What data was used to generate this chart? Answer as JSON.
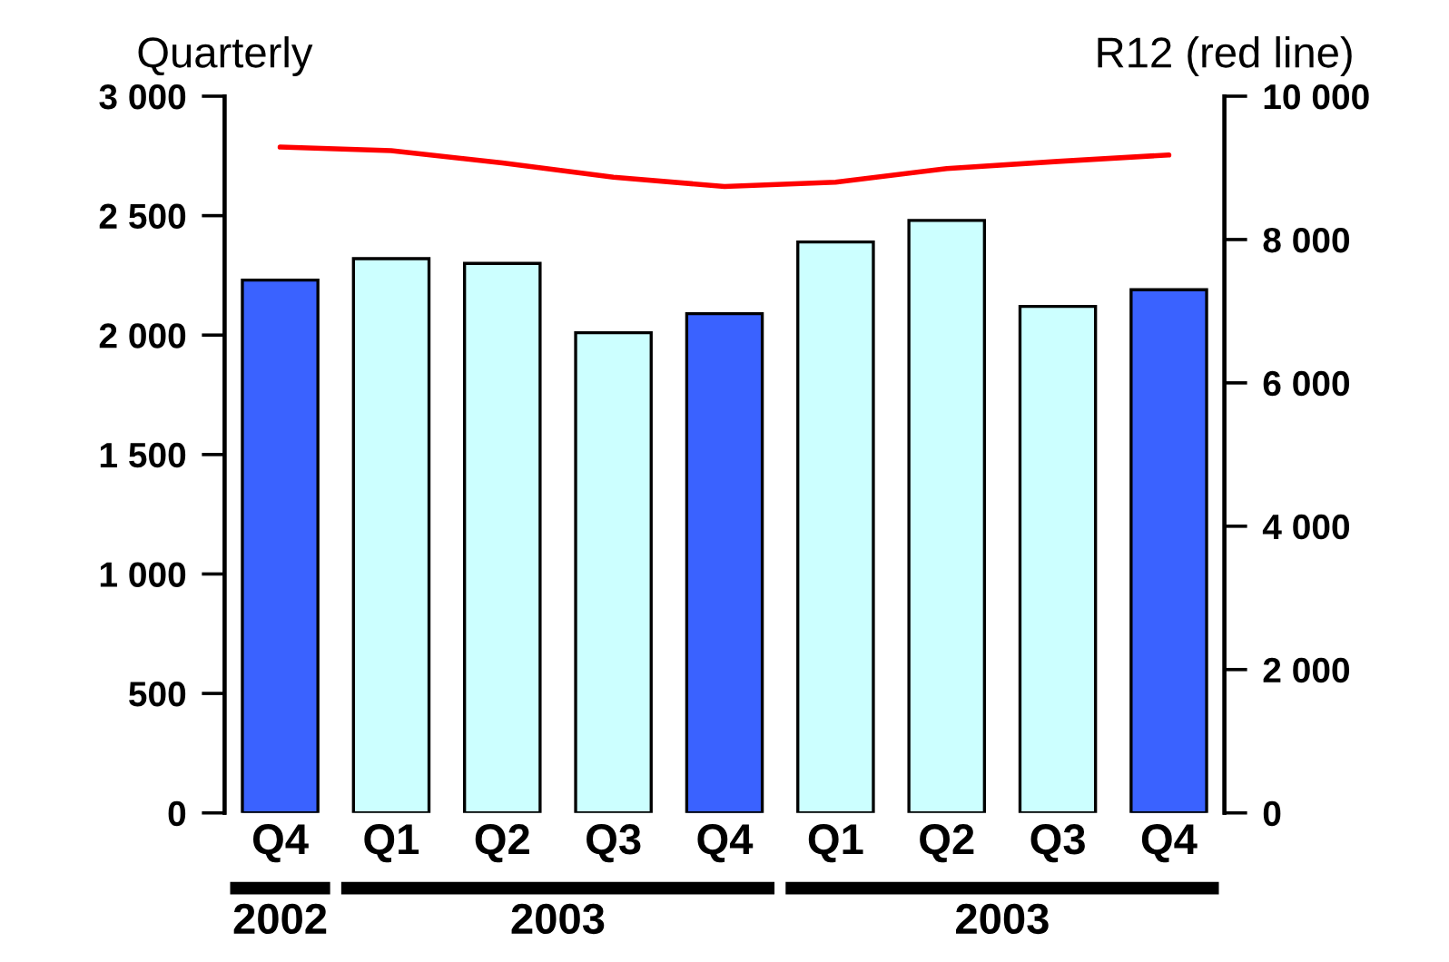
{
  "chart_data": {
    "type": "bar",
    "ylabel": "Quarterly",
    "y2label": "R12 (red line)",
    "categories": [
      "Q4",
      "Q1",
      "Q2",
      "Q3",
      "Q4",
      "Q1",
      "Q2",
      "Q3",
      "Q4"
    ],
    "series": [
      {
        "colors": [
          "#3a62ff",
          "#ccffff",
          "#ccffff",
          "#ccffff",
          "#3a62ff",
          "#ccffff",
          "#ccffff",
          "#ccffff",
          "#3a62ff"
        ],
        "values": [
          2230,
          2320,
          2300,
          2010,
          2090,
          2390,
          2480,
          2120,
          2190
        ]
      },
      {
        "type": "line",
        "axis": "y2",
        "color": "#ff0000",
        "values": [
          9290,
          9240,
          9070,
          8870,
          8740,
          8800,
          8990,
          9090,
          9180
        ]
      }
    ],
    "ylim": [
      0,
      3000
    ],
    "yticks": [
      {
        "value": 0,
        "label": "0"
      },
      {
        "value": 500,
        "label": "500"
      },
      {
        "value": 1000,
        "label": "1 000"
      },
      {
        "value": 1500,
        "label": "1 500"
      },
      {
        "value": 2000,
        "label": "2 000"
      },
      {
        "value": 2500,
        "label": "2 500"
      },
      {
        "value": 3000,
        "label": "3 000"
      }
    ],
    "y2lim": [
      0,
      10000
    ],
    "y2ticks": [
      {
        "value": 0,
        "label": "0"
      },
      {
        "value": 2000,
        "label": "2 000"
      },
      {
        "value": 4000,
        "label": "4 000"
      },
      {
        "value": 6000,
        "label": "6 000"
      },
      {
        "value": 8000,
        "label": "8 000"
      },
      {
        "value": 10000,
        "label": "10 000"
      }
    ],
    "annotations": [
      "2002",
      "2003",
      "2003"
    ],
    "grid": false,
    "legend": false
  }
}
